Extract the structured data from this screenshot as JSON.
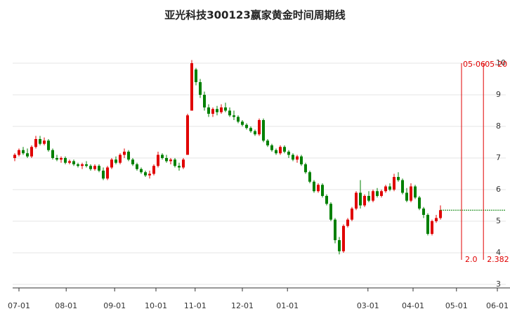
{
  "chart_data": {
    "type": "candlestick",
    "title": "亚光科技300123嬴家黄金时间周期线",
    "up_color": "#e00000",
    "down_color": "#008000",
    "grid": true,
    "ylim": [
      3,
      10
    ],
    "yticks": [
      3,
      4,
      5,
      6,
      7,
      8,
      9,
      10
    ],
    "xlim": [
      0,
      117
    ],
    "xticks": [
      {
        "value": 1.5,
        "label": "07-01"
      },
      {
        "value": 12.7,
        "label": "08-01"
      },
      {
        "value": 24.2,
        "label": "09-01"
      },
      {
        "value": 34,
        "label": "10-01"
      },
      {
        "value": 43.3,
        "label": "11-01"
      },
      {
        "value": 54.5,
        "label": "12-01"
      },
      {
        "value": 65.2,
        "label": "01-01"
      },
      {
        "value": 84.3,
        "label": "03-01"
      },
      {
        "value": 95,
        "label": "04-01"
      },
      {
        "value": 105.3,
        "label": "05-01"
      },
      {
        "value": 115,
        "label": "06-01"
      }
    ],
    "cycle_lines": [
      {
        "x": 106.5,
        "date": "05-06",
        "ratio": "2.0"
      },
      {
        "x": 111.7,
        "date": "05-20",
        "ratio": "2.382"
      }
    ],
    "candles": [
      [
        7.0,
        7.15,
        6.9,
        7.1
      ],
      [
        7.1,
        7.3,
        7.05,
        7.25
      ],
      [
        7.25,
        7.35,
        7.1,
        7.15
      ],
      [
        7.15,
        7.3,
        7.0,
        7.05
      ],
      [
        7.05,
        7.4,
        7.0,
        7.35
      ],
      [
        7.35,
        7.7,
        7.3,
        7.6
      ],
      [
        7.6,
        7.7,
        7.4,
        7.45
      ],
      [
        7.45,
        7.65,
        7.4,
        7.55
      ],
      [
        7.55,
        7.6,
        7.2,
        7.25
      ],
      [
        7.25,
        7.3,
        6.95,
        7.0
      ],
      [
        7.0,
        7.1,
        6.9,
        6.95
      ],
      [
        6.95,
        7.05,
        6.85,
        7.0
      ],
      [
        7.0,
        7.05,
        6.8,
        6.85
      ],
      [
        6.85,
        6.95,
        6.8,
        6.9
      ],
      [
        6.9,
        6.95,
        6.75,
        6.8
      ],
      [
        6.8,
        6.85,
        6.7,
        6.75
      ],
      [
        6.75,
        6.85,
        6.65,
        6.8
      ],
      [
        6.8,
        6.9,
        6.7,
        6.75
      ],
      [
        6.75,
        6.8,
        6.6,
        6.65
      ],
      [
        6.65,
        6.8,
        6.6,
        6.75
      ],
      [
        6.75,
        6.8,
        6.55,
        6.6
      ],
      [
        6.6,
        6.7,
        6.3,
        6.35
      ],
      [
        6.35,
        6.75,
        6.3,
        6.7
      ],
      [
        6.7,
        7.0,
        6.65,
        6.95
      ],
      [
        6.95,
        7.05,
        6.8,
        6.85
      ],
      [
        6.85,
        7.15,
        6.8,
        7.1
      ],
      [
        7.1,
        7.3,
        7.0,
        7.2
      ],
      [
        7.2,
        7.25,
        6.9,
        6.95
      ],
      [
        6.95,
        7.0,
        6.75,
        6.8
      ],
      [
        6.8,
        6.85,
        6.6,
        6.65
      ],
      [
        6.65,
        6.7,
        6.5,
        6.55
      ],
      [
        6.55,
        6.6,
        6.4,
        6.45
      ],
      [
        6.45,
        6.6,
        6.35,
        6.5
      ],
      [
        6.5,
        6.8,
        6.45,
        6.75
      ],
      [
        6.75,
        7.2,
        6.7,
        7.1
      ],
      [
        7.1,
        7.15,
        6.95,
        7.0
      ],
      [
        7.0,
        7.1,
        6.85,
        6.9
      ],
      [
        6.9,
        7.0,
        6.8,
        6.95
      ],
      [
        6.95,
        7.0,
        6.7,
        6.75
      ],
      [
        6.75,
        6.85,
        6.6,
        6.7
      ],
      [
        6.7,
        7.0,
        6.65,
        6.95
      ],
      [
        7.1,
        8.4,
        7.1,
        8.35
      ],
      [
        8.5,
        10.1,
        8.5,
        10.0
      ],
      [
        9.8,
        9.85,
        9.3,
        9.4
      ],
      [
        9.4,
        9.5,
        8.9,
        9.0
      ],
      [
        9.0,
        9.1,
        8.5,
        8.6
      ],
      [
        8.6,
        8.7,
        8.3,
        8.4
      ],
      [
        8.4,
        8.6,
        8.3,
        8.55
      ],
      [
        8.55,
        8.65,
        8.35,
        8.45
      ],
      [
        8.45,
        8.7,
        8.4,
        8.6
      ],
      [
        8.6,
        8.75,
        8.45,
        8.5
      ],
      [
        8.5,
        8.6,
        8.3,
        8.35
      ],
      [
        8.35,
        8.5,
        8.2,
        8.3
      ],
      [
        8.3,
        8.35,
        8.1,
        8.15
      ],
      [
        8.15,
        8.2,
        8.0,
        8.05
      ],
      [
        8.05,
        8.1,
        7.9,
        7.95
      ],
      [
        7.95,
        8.0,
        7.8,
        7.85
      ],
      [
        7.85,
        7.9,
        7.7,
        7.75
      ],
      [
        7.75,
        8.25,
        7.7,
        8.2
      ],
      [
        8.2,
        8.25,
        7.5,
        7.55
      ],
      [
        7.55,
        7.6,
        7.35,
        7.4
      ],
      [
        7.4,
        7.45,
        7.2,
        7.25
      ],
      [
        7.25,
        7.3,
        7.1,
        7.15
      ],
      [
        7.15,
        7.4,
        7.1,
        7.35
      ],
      [
        7.35,
        7.4,
        7.15,
        7.2
      ],
      [
        7.2,
        7.25,
        7.0,
        7.1
      ],
      [
        7.1,
        7.15,
        6.9,
        6.95
      ],
      [
        6.95,
        7.1,
        6.85,
        7.05
      ],
      [
        7.05,
        7.1,
        6.75,
        6.8
      ],
      [
        6.8,
        6.85,
        6.5,
        6.55
      ],
      [
        6.55,
        6.6,
        6.2,
        6.25
      ],
      [
        6.25,
        6.3,
        5.9,
        5.95
      ],
      [
        5.95,
        6.2,
        5.9,
        6.15
      ],
      [
        6.15,
        6.2,
        5.75,
        5.8
      ],
      [
        5.8,
        5.85,
        5.5,
        5.55
      ],
      [
        5.55,
        5.6,
        5.0,
        5.05
      ],
      [
        5.05,
        5.1,
        4.3,
        4.4
      ],
      [
        4.4,
        4.5,
        3.95,
        4.05
      ],
      [
        4.05,
        4.9,
        4.0,
        4.85
      ],
      [
        4.85,
        5.1,
        4.8,
        5.05
      ],
      [
        5.05,
        5.45,
        5.0,
        5.4
      ],
      [
        5.4,
        5.95,
        5.35,
        5.9
      ],
      [
        5.9,
        6.3,
        5.4,
        5.5
      ],
      [
        5.5,
        5.85,
        5.45,
        5.8
      ],
      [
        5.8,
        5.95,
        5.6,
        5.65
      ],
      [
        5.65,
        6.0,
        5.6,
        5.95
      ],
      [
        5.95,
        6.05,
        5.75,
        5.8
      ],
      [
        5.8,
        6.0,
        5.75,
        5.95
      ],
      [
        5.95,
        6.15,
        5.9,
        6.1
      ],
      [
        6.1,
        6.2,
        5.95,
        6.0
      ],
      [
        6.0,
        6.5,
        5.95,
        6.4
      ],
      [
        6.4,
        6.55,
        6.25,
        6.3
      ],
      [
        6.3,
        6.35,
        5.85,
        5.9
      ],
      [
        5.9,
        6.05,
        5.6,
        5.65
      ],
      [
        5.65,
        6.2,
        5.6,
        6.1
      ],
      [
        6.1,
        6.15,
        5.7,
        5.75
      ],
      [
        5.75,
        5.8,
        5.35,
        5.4
      ],
      [
        5.4,
        5.45,
        5.1,
        5.2
      ],
      [
        5.2,
        5.25,
        4.55,
        4.6
      ],
      [
        4.6,
        5.05,
        4.55,
        5.0
      ],
      [
        5.0,
        5.2,
        4.95,
        5.1
      ],
      [
        5.1,
        5.5,
        5.05,
        5.35
      ]
    ]
  }
}
